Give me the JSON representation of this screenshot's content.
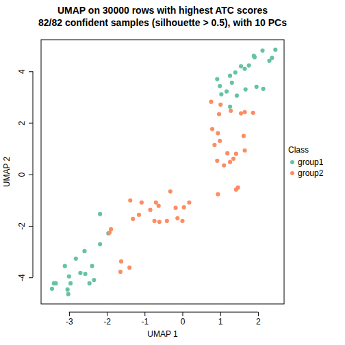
{
  "chart_data": {
    "type": "scatter",
    "title": "UMAP on 30000 rows with highest ATC scores",
    "subtitle": "82/82 confident samples (silhouette > 0.5), with 10 PCs",
    "x_label": "UMAP 1",
    "y_label": "UMAP 2",
    "legend_title": "Class",
    "legend": "right",
    "xlim": [
      -3.74,
      2.69
    ],
    "ylim": [
      -5.03,
      5.23
    ],
    "xticks": [
      -3,
      -2,
      -1,
      0,
      1,
      2
    ],
    "yticks": [
      -4,
      -2,
      0,
      2,
      4
    ],
    "series": [
      {
        "name": "group1",
        "color": "#66C2A5",
        "marker": "circle",
        "x": [
          2.46,
          2.12,
          2.37,
          2.3,
          1.89,
          1.91,
          1.76,
          1.55,
          1.65,
          1.4,
          1.26,
          0.92,
          0.99,
          1.31,
          1.17,
          1.03,
          1.44,
          1.67,
          1.26,
          2.14,
          1.96,
          -2.18,
          -1.96,
          -2.18,
          -2.59,
          -2.82,
          -2.39,
          -3.11,
          -2.7,
          -2.57,
          -2.34,
          -2.46,
          -3.0,
          -2.96,
          -3.4,
          -3.35,
          -3.45,
          -3.04,
          -3.02
        ],
        "y": [
          4.84,
          4.81,
          4.52,
          4.41,
          4.6,
          4.55,
          4.23,
          4.2,
          4.1,
          3.96,
          3.83,
          3.7,
          3.43,
          3.56,
          3.22,
          3.11,
          3.06,
          3.3,
          2.63,
          3.32,
          3.4,
          -1.54,
          -2.29,
          -2.71,
          -2.98,
          -3.27,
          -3.56,
          -3.56,
          -3.83,
          -3.86,
          -4.1,
          -4.23,
          -3.96,
          -4.23,
          -4.23,
          -4.23,
          -4.44,
          -4.47,
          -4.65
        ]
      },
      {
        "name": "group2",
        "color": "#FC8D62",
        "marker": "circle",
        "x": [
          0.76,
          1.01,
          0.97,
          1.28,
          1.55,
          1.65,
          1.87,
          0.79,
          0.94,
          0.99,
          0.85,
          1.62,
          1.65,
          1.42,
          1.19,
          1.35,
          1.26,
          1.1,
          0.92,
          1.47,
          1.42,
          0.94,
          -0.32,
          0.18,
          0.04,
          -0.18,
          -0.63,
          -0.7,
          -1.08,
          -1.38,
          -0.85,
          -1.15,
          -0.74,
          -0.61,
          -0.41,
          -0.13,
          0.0,
          -1.31,
          -1.89,
          -1.93,
          -1.62,
          -1.4,
          -1.64
        ],
        "y": [
          2.82,
          2.71,
          2.34,
          2.47,
          2.37,
          2.42,
          2.39,
          1.76,
          1.6,
          1.3,
          1.14,
          1.49,
          0.93,
          0.8,
          0.82,
          0.61,
          0.48,
          0.35,
          0.53,
          -0.51,
          -0.59,
          -0.77,
          -0.66,
          -1.09,
          -1.28,
          -1.3,
          -1.22,
          -1.09,
          -1.09,
          -1.01,
          -1.38,
          -1.57,
          -1.81,
          -1.84,
          -1.81,
          -1.7,
          -1.81,
          -1.73,
          -2.13,
          -2.26,
          -3.38,
          -3.62,
          -3.78
        ]
      }
    ]
  }
}
